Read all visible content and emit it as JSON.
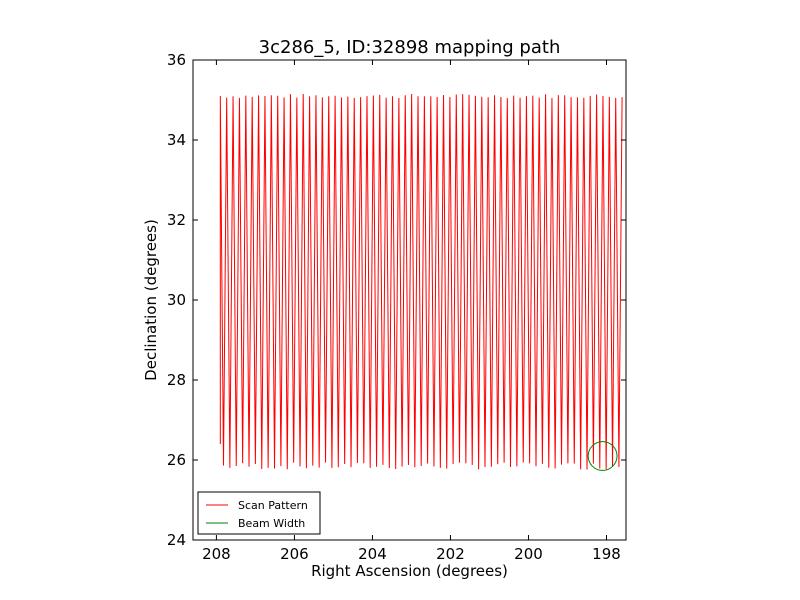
{
  "chart_data": {
    "type": "line",
    "title": "3c286_5, ID:32898 mapping path",
    "xlabel": "Right Ascension (degrees)",
    "ylabel": "Declination (degrees)",
    "xlim": [
      208.6,
      197.5
    ],
    "ylim": [
      24,
      36
    ],
    "x_ticks": [
      208,
      206,
      204,
      202,
      200,
      198
    ],
    "y_ticks": [
      24,
      26,
      28,
      30,
      32,
      34,
      36
    ],
    "grid": false,
    "legend_position": "lower-left",
    "series": [
      {
        "name": "Scan Pattern",
        "color": "#ff0000",
        "scan": {
          "ra_start": 207.9,
          "ra_end": 197.6,
          "dec_low": 25.85,
          "dec_high": 35.15,
          "turnarounds": 126
        }
      },
      {
        "name": "Beam Width",
        "color": "#008000",
        "circle": {
          "ra": 198.1,
          "dec": 26.1,
          "radius_deg": 0.37
        }
      }
    ]
  }
}
